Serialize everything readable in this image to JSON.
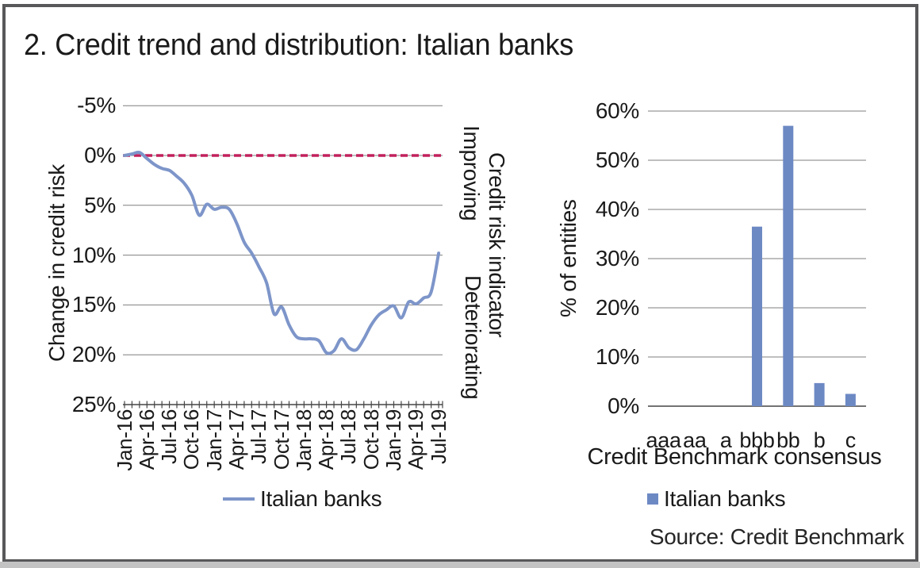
{
  "title": "2. Credit trend and distribution: Italian banks",
  "source": "Source: Credit Benchmark",
  "colors": {
    "series_blue": "#7D95C9",
    "bar_blue": "#6D89C4",
    "zero_line_red": "#C2205C",
    "gridline_gray": "#7f7f7f",
    "axis_gray": "#454545"
  },
  "chart_data": [
    {
      "type": "line",
      "ylabel": "Change in credit risk",
      "right_axis_title": "Credit risk indicator",
      "right_axis_top_label": "Improving",
      "right_axis_bottom_label": "Deteriorating",
      "legend": "Italian banks",
      "grid": true,
      "y_inverted": true,
      "ylim": [
        -5,
        25
      ],
      "yticks": [
        -5,
        0,
        5,
        10,
        15,
        20,
        25
      ],
      "ytick_labels": [
        "-5%",
        "0%",
        "5%",
        "10%",
        "15%",
        "20%",
        "25%"
      ],
      "zero_reference_line": {
        "value": 0,
        "style": "dashed"
      },
      "x": [
        "Jan-16",
        "Feb-16",
        "Mar-16",
        "Apr-16",
        "May-16",
        "Jun-16",
        "Jul-16",
        "Aug-16",
        "Sep-16",
        "Oct-16",
        "Nov-16",
        "Dec-16",
        "Jan-17",
        "Feb-17",
        "Mar-17",
        "Apr-17",
        "May-17",
        "Jun-17",
        "Jul-17",
        "Aug-17",
        "Sep-17",
        "Oct-17",
        "Nov-17",
        "Dec-17",
        "Jan-18",
        "Feb-18",
        "Mar-18",
        "Apr-18",
        "May-18",
        "Jun-18",
        "Jul-18",
        "Aug-18",
        "Sep-18",
        "Oct-18",
        "Nov-18",
        "Dec-18",
        "Jan-19",
        "Feb-19",
        "Mar-19",
        "Apr-19",
        "May-19",
        "Jun-19",
        "Jul-19"
      ],
      "x_label_every": 3,
      "values": [
        0.0,
        -0.15,
        -0.3,
        0.3,
        0.9,
        1.3,
        1.5,
        2.1,
        2.8,
        4.0,
        6.0,
        4.9,
        5.4,
        5.2,
        5.4,
        6.8,
        8.7,
        9.8,
        11.2,
        12.8,
        15.9,
        15.2,
        17.0,
        18.2,
        18.4,
        18.4,
        18.6,
        19.8,
        19.6,
        18.4,
        19.3,
        19.5,
        18.4,
        17.0,
        16.0,
        15.5,
        15.1,
        16.3,
        14.7,
        14.9,
        14.3,
        13.7,
        9.8
      ]
    },
    {
      "type": "bar",
      "xlabel": "Credit Benchmark consensus",
      "ylabel": "% of entities",
      "legend": "Italian banks",
      "grid": true,
      "ylim": [
        0,
        60
      ],
      "yticks": [
        0,
        10,
        20,
        30,
        40,
        50,
        60
      ],
      "ytick_labels": [
        "0%",
        "10%",
        "20%",
        "30%",
        "40%",
        "50%",
        "60%"
      ],
      "categories": [
        "aaa",
        "aa",
        "a",
        "bbb",
        "bb",
        "b",
        "c"
      ],
      "values": [
        0,
        0,
        0,
        36.5,
        57,
        4.7,
        2.5
      ]
    }
  ]
}
